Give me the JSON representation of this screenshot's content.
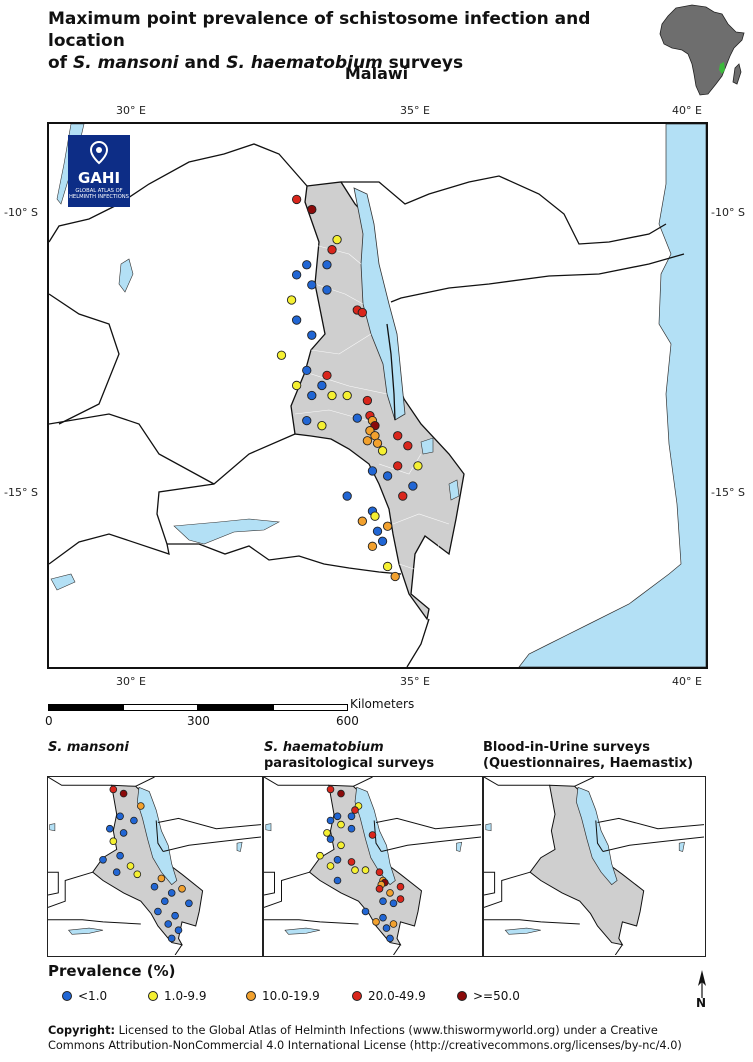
{
  "title_line1": "Maximum point prevalence of schistosome infection and location",
  "title_line2_prefix": "of ",
  "title_line2_species1": "S. mansoni",
  "title_line2_mid": " and ",
  "title_line2_species2": "S. haematobium",
  "title_line2_suffix": " surveys",
  "subtitle": "Malawi",
  "logo": {
    "acronym": "GAHI",
    "line1": "GLOBAL ATLAS OF",
    "line2": "HELMINTH INFECTIONS"
  },
  "axes": {
    "top_ticks": [
      "30° E",
      "35° E",
      "40° E"
    ],
    "bottom_ticks": [
      "30° E",
      "35° E",
      "40° E"
    ],
    "left_ticks": [
      "-10° S",
      "-15° S"
    ],
    "right_ticks": [
      "-10° S",
      "-15° S"
    ]
  },
  "scalebar": {
    "unit": "Kilometers",
    "labels": [
      "0",
      "300",
      "600"
    ]
  },
  "panels": [
    {
      "title_line1": "S. mansoni",
      "title_line2": ""
    },
    {
      "title_line1": "S. haematobium",
      "title_line2": "parasitological surveys"
    },
    {
      "title_line1": "Blood-in-Urine surveys",
      "title_line2": "(Questionnaires, Haemastix)"
    }
  ],
  "legend": {
    "title": "Prevalence (%)",
    "classes": [
      {
        "label": "<1.0",
        "color": "#2166d4"
      },
      {
        "label": "1.0-9.9",
        "color": "#f5f032"
      },
      {
        "label": "10.0-19.9",
        "color": "#f2a12e"
      },
      {
        "label": "20.0-49.9",
        "color": "#d9261c"
      },
      {
        "label": ">=50.0",
        "color": "#8b0a0a"
      }
    ]
  },
  "north_arrow_label": "N",
  "copyright": {
    "label": "Copyright:",
    "text1": " Licensed to the Global Atlas of Helminth Infections  (www.thiswormyworld.org) under a Creative",
    "text2": "Commons Attribution-NonCommercial 4.0 International License (http://creativecommons.org/licenses/by-nc/4.0)"
  },
  "colors": {
    "water": "#b3e0f5",
    "country": "#cfcfcf",
    "frame": "#111111",
    "logo_bg": "#0d2d86"
  },
  "survey_points_main": [
    {
      "lon": 33.3,
      "lat": -9.6,
      "cls": 3
    },
    {
      "lon": 33.6,
      "lat": -9.8,
      "cls": 4
    },
    {
      "lon": 34.1,
      "lat": -10.4,
      "cls": 1
    },
    {
      "lon": 34.0,
      "lat": -10.6,
      "cls": 3
    },
    {
      "lon": 33.5,
      "lat": -10.9,
      "cls": 0
    },
    {
      "lon": 33.9,
      "lat": -10.9,
      "cls": 0
    },
    {
      "lon": 33.3,
      "lat": -11.1,
      "cls": 0
    },
    {
      "lon": 33.6,
      "lat": -11.3,
      "cls": 0
    },
    {
      "lon": 33.9,
      "lat": -11.4,
      "cls": 0
    },
    {
      "lon": 33.2,
      "lat": -11.6,
      "cls": 1
    },
    {
      "lon": 34.5,
      "lat": -11.8,
      "cls": 3
    },
    {
      "lon": 34.6,
      "lat": -11.85,
      "cls": 3
    },
    {
      "lon": 33.3,
      "lat": -12.0,
      "cls": 0
    },
    {
      "lon": 33.6,
      "lat": -12.3,
      "cls": 0
    },
    {
      "lon": 33.0,
      "lat": -12.7,
      "cls": 1
    },
    {
      "lon": 33.5,
      "lat": -13.0,
      "cls": 0
    },
    {
      "lon": 33.9,
      "lat": -13.1,
      "cls": 3
    },
    {
      "lon": 33.3,
      "lat": -13.3,
      "cls": 1
    },
    {
      "lon": 33.8,
      "lat": -13.3,
      "cls": 0
    },
    {
      "lon": 34.0,
      "lat": -13.5,
      "cls": 1
    },
    {
      "lon": 33.6,
      "lat": -13.5,
      "cls": 0
    },
    {
      "lon": 34.3,
      "lat": -13.5,
      "cls": 1
    },
    {
      "lon": 34.7,
      "lat": -13.6,
      "cls": 3
    },
    {
      "lon": 33.5,
      "lat": -14.0,
      "cls": 0
    },
    {
      "lon": 33.8,
      "lat": -14.1,
      "cls": 1
    },
    {
      "lon": 34.5,
      "lat": -13.95,
      "cls": 0
    },
    {
      "lon": 34.75,
      "lat": -13.9,
      "cls": 3
    },
    {
      "lon": 34.8,
      "lat": -14.0,
      "cls": 2
    },
    {
      "lon": 34.85,
      "lat": -14.1,
      "cls": 4
    },
    {
      "lon": 34.75,
      "lat": -14.2,
      "cls": 2
    },
    {
      "lon": 34.85,
      "lat": -14.3,
      "cls": 2
    },
    {
      "lon": 34.7,
      "lat": -14.4,
      "cls": 2
    },
    {
      "lon": 34.9,
      "lat": -14.45,
      "cls": 2
    },
    {
      "lon": 35.3,
      "lat": -14.3,
      "cls": 3
    },
    {
      "lon": 35.5,
      "lat": -14.5,
      "cls": 3
    },
    {
      "lon": 35.0,
      "lat": -14.6,
      "cls": 1
    },
    {
      "lon": 35.3,
      "lat": -14.9,
      "cls": 3
    },
    {
      "lon": 35.7,
      "lat": -14.9,
      "cls": 1
    },
    {
      "lon": 34.8,
      "lat": -15.0,
      "cls": 0
    },
    {
      "lon": 35.1,
      "lat": -15.1,
      "cls": 0
    },
    {
      "lon": 35.6,
      "lat": -15.3,
      "cls": 0
    },
    {
      "lon": 34.3,
      "lat": -15.5,
      "cls": 0
    },
    {
      "lon": 35.4,
      "lat": -15.5,
      "cls": 3
    },
    {
      "lon": 34.8,
      "lat": -15.8,
      "cls": 0
    },
    {
      "lon": 34.85,
      "lat": -15.9,
      "cls": 1
    },
    {
      "lon": 34.6,
      "lat": -16.0,
      "cls": 2
    },
    {
      "lon": 35.1,
      "lat": -16.1,
      "cls": 2
    },
    {
      "lon": 34.9,
      "lat": -16.2,
      "cls": 0
    },
    {
      "lon": 35.0,
      "lat": -16.4,
      "cls": 0
    },
    {
      "lon": 34.8,
      "lat": -16.5,
      "cls": 2
    },
    {
      "lon": 35.1,
      "lat": -16.9,
      "cls": 1
    },
    {
      "lon": 35.25,
      "lat": -17.1,
      "cls": 2
    }
  ],
  "survey_points_mansoni": [
    {
      "lon": 33.3,
      "lat": -9.6,
      "cls": 3
    },
    {
      "lon": 33.6,
      "lat": -9.8,
      "cls": 4
    },
    {
      "lon": 34.1,
      "lat": -10.4,
      "cls": 2
    },
    {
      "lon": 33.5,
      "lat": -10.9,
      "cls": 0
    },
    {
      "lon": 33.9,
      "lat": -11.1,
      "cls": 0
    },
    {
      "lon": 33.2,
      "lat": -11.5,
      "cls": 0
    },
    {
      "lon": 33.6,
      "lat": -11.7,
      "cls": 0
    },
    {
      "lon": 33.3,
      "lat": -12.1,
      "cls": 1
    },
    {
      "lon": 33.5,
      "lat": -12.8,
      "cls": 0
    },
    {
      "lon": 33.0,
      "lat": -13.0,
      "cls": 0
    },
    {
      "lon": 33.8,
      "lat": -13.3,
      "cls": 1
    },
    {
      "lon": 33.4,
      "lat": -13.6,
      "cls": 0
    },
    {
      "lon": 34.0,
      "lat": -13.7,
      "cls": 1
    },
    {
      "lon": 34.7,
      "lat": -13.9,
      "cls": 2
    },
    {
      "lon": 34.5,
      "lat": -14.3,
      "cls": 0
    },
    {
      "lon": 35.0,
      "lat": -14.6,
      "cls": 0
    },
    {
      "lon": 35.3,
      "lat": -14.4,
      "cls": 2
    },
    {
      "lon": 34.8,
      "lat": -15.0,
      "cls": 0
    },
    {
      "lon": 35.5,
      "lat": -15.1,
      "cls": 0
    },
    {
      "lon": 34.6,
      "lat": -15.5,
      "cls": 0
    },
    {
      "lon": 35.1,
      "lat": -15.7,
      "cls": 0
    },
    {
      "lon": 34.9,
      "lat": -16.1,
      "cls": 0
    },
    {
      "lon": 35.2,
      "lat": -16.4,
      "cls": 0
    },
    {
      "lon": 35.0,
      "lat": -16.8,
      "cls": 0
    }
  ],
  "survey_points_haematobium": [
    {
      "lon": 33.3,
      "lat": -9.6,
      "cls": 3
    },
    {
      "lon": 33.6,
      "lat": -9.8,
      "cls": 4
    },
    {
      "lon": 34.1,
      "lat": -10.4,
      "cls": 1
    },
    {
      "lon": 34.0,
      "lat": -10.6,
      "cls": 3
    },
    {
      "lon": 33.5,
      "lat": -10.9,
      "cls": 0
    },
    {
      "lon": 33.9,
      "lat": -10.9,
      "cls": 0
    },
    {
      "lon": 33.3,
      "lat": -11.1,
      "cls": 0
    },
    {
      "lon": 33.6,
      "lat": -11.3,
      "cls": 1
    },
    {
      "lon": 33.9,
      "lat": -11.5,
      "cls": 0
    },
    {
      "lon": 33.2,
      "lat": -11.7,
      "cls": 1
    },
    {
      "lon": 34.5,
      "lat": -11.8,
      "cls": 3
    },
    {
      "lon": 33.3,
      "lat": -12.0,
      "cls": 0
    },
    {
      "lon": 33.6,
      "lat": -12.3,
      "cls": 1
    },
    {
      "lon": 33.0,
      "lat": -12.8,
      "cls": 1
    },
    {
      "lon": 33.5,
      "lat": -13.0,
      "cls": 0
    },
    {
      "lon": 33.9,
      "lat": -13.1,
      "cls": 3
    },
    {
      "lon": 33.3,
      "lat": -13.3,
      "cls": 1
    },
    {
      "lon": 34.0,
      "lat": -13.5,
      "cls": 1
    },
    {
      "lon": 34.3,
      "lat": -13.5,
      "cls": 1
    },
    {
      "lon": 34.7,
      "lat": -13.6,
      "cls": 3
    },
    {
      "lon": 33.5,
      "lat": -14.0,
      "cls": 0
    },
    {
      "lon": 34.8,
      "lat": -14.0,
      "cls": 2
    },
    {
      "lon": 34.85,
      "lat": -14.1,
      "cls": 4
    },
    {
      "lon": 34.75,
      "lat": -14.2,
      "cls": 2
    },
    {
      "lon": 34.7,
      "lat": -14.4,
      "cls": 3
    },
    {
      "lon": 35.3,
      "lat": -14.3,
      "cls": 3
    },
    {
      "lon": 35.0,
      "lat": -14.6,
      "cls": 2
    },
    {
      "lon": 35.3,
      "lat": -14.9,
      "cls": 3
    },
    {
      "lon": 34.8,
      "lat": -15.0,
      "cls": 0
    },
    {
      "lon": 35.1,
      "lat": -15.1,
      "cls": 0
    },
    {
      "lon": 34.3,
      "lat": -15.5,
      "cls": 0
    },
    {
      "lon": 34.8,
      "lat": -15.8,
      "cls": 0
    },
    {
      "lon": 34.6,
      "lat": -16.0,
      "cls": 2
    },
    {
      "lon": 35.1,
      "lat": -16.1,
      "cls": 2
    },
    {
      "lon": 34.9,
      "lat": -16.3,
      "cls": 0
    },
    {
      "lon": 35.0,
      "lat": -16.8,
      "cls": 0
    }
  ]
}
